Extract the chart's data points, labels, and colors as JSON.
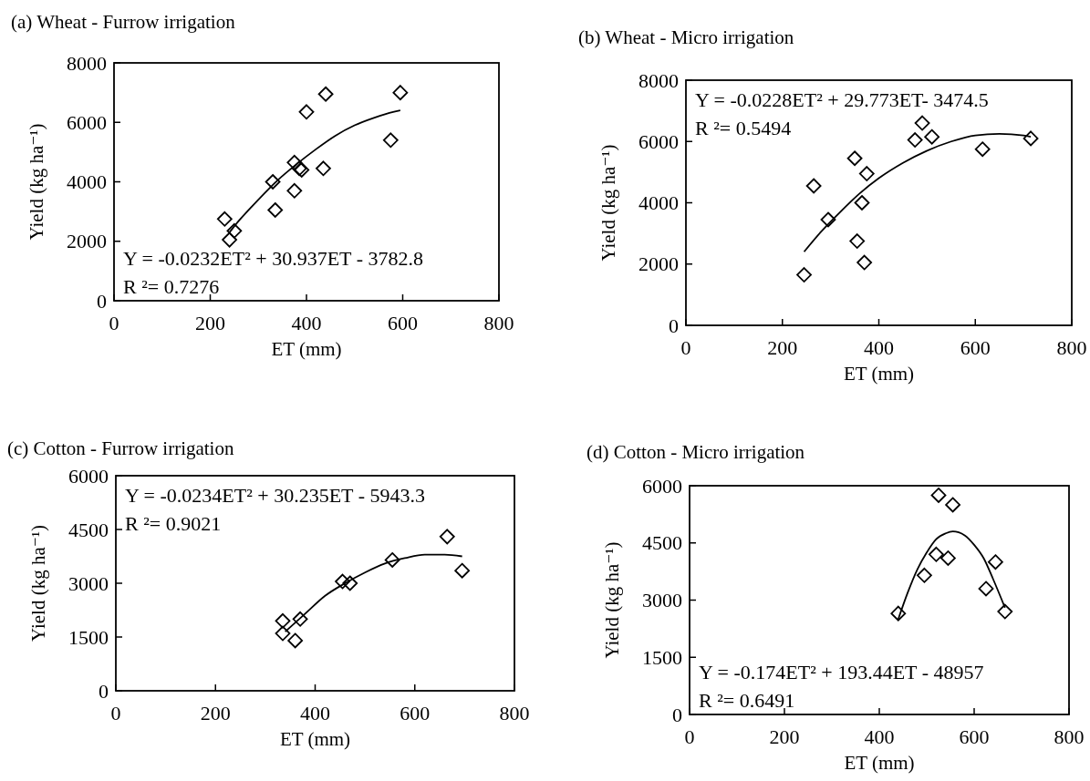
{
  "chart_data": [
    {
      "type": "scatter",
      "title": "(a) Wheat - Furrow irrigation",
      "xlabel": "ET (mm)",
      "ylabel": "Yield (kg ha⁻¹)",
      "xlim": [
        0,
        800
      ],
      "xticks": [
        0,
        200,
        400,
        600,
        800
      ],
      "ylim": [
        0,
        8000
      ],
      "yticks": [
        0,
        2000,
        4000,
        6000,
        8000
      ],
      "annotations": [
        "Y = -0.0232ET² + 30.937ET - 3782.8",
        "R ²= 0.7276"
      ],
      "series": [
        {
          "type": "scatter",
          "marker": "diamond",
          "color": "#000000",
          "x": [
            230,
            240,
            250,
            330,
            335,
            375,
            375,
            385,
            390,
            400,
            435,
            440,
            575,
            595
          ],
          "values": [
            2750,
            2050,
            2350,
            4000,
            3050,
            4650,
            3700,
            4450,
            4400,
            6350,
            4450,
            6950,
            5400,
            7000
          ]
        },
        {
          "type": "line",
          "marker": "none",
          "color": "#000000",
          "x": [
            240,
            260,
            300,
            340,
            380,
            420,
            460,
            500,
            540,
            580,
            595
          ],
          "values": [
            2300,
            2700,
            3400,
            4050,
            4600,
            5100,
            5550,
            5900,
            6150,
            6350,
            6400
          ]
        }
      ]
    },
    {
      "type": "scatter",
      "title": "(b) Wheat - Micro irrigation",
      "xlabel": "ET (mm)",
      "ylabel": "Yield (kg ha⁻¹)",
      "xlim": [
        0,
        800
      ],
      "xticks": [
        0,
        200,
        400,
        600,
        800
      ],
      "ylim": [
        0,
        8000
      ],
      "yticks": [
        0,
        2000,
        4000,
        6000,
        8000
      ],
      "annotations": [
        "Y = -0.0228ET² + 29.773ET- 3474.5",
        "R ²= 0.5494"
      ],
      "series": [
        {
          "type": "scatter",
          "marker": "diamond",
          "color": "#000000",
          "x": [
            245,
            265,
            295,
            350,
            355,
            365,
            370,
            375,
            475,
            490,
            510,
            615,
            715
          ],
          "values": [
            1650,
            4550,
            3450,
            5450,
            2750,
            4000,
            2050,
            4950,
            6050,
            6600,
            6150,
            5750,
            6100
          ]
        },
        {
          "type": "line",
          "marker": "none",
          "color": "#000000",
          "x": [
            245,
            280,
            320,
            360,
            400,
            450,
            500,
            550,
            600,
            650,
            700,
            715
          ],
          "values": [
            2400,
            3050,
            3700,
            4300,
            4800,
            5300,
            5700,
            6000,
            6200,
            6250,
            6200,
            6150
          ]
        }
      ]
    },
    {
      "type": "scatter",
      "title": "(c) Cotton - Furrow irrigation",
      "xlabel": "ET (mm)",
      "ylabel": "Yield (kg ha⁻¹)",
      "xlim": [
        0,
        800
      ],
      "xticks": [
        0,
        200,
        400,
        600,
        800
      ],
      "ylim": [
        0,
        6000
      ],
      "yticks": [
        0,
        1500,
        3000,
        4500,
        6000
      ],
      "annotations": [
        "Y = -0.0234ET² + 30.235ET - 5943.3",
        "R ²= 0.9021"
      ],
      "series": [
        {
          "type": "scatter",
          "marker": "diamond",
          "color": "#000000",
          "x": [
            335,
            335,
            360,
            370,
            455,
            470,
            555,
            665,
            695
          ],
          "values": [
            1950,
            1600,
            1400,
            2000,
            3050,
            3000,
            3650,
            4300,
            3350
          ]
        },
        {
          "type": "line",
          "marker": "none",
          "color": "#000000",
          "x": [
            340,
            380,
            420,
            460,
            500,
            540,
            580,
            620,
            660,
            695
          ],
          "values": [
            1650,
            2150,
            2650,
            3000,
            3300,
            3550,
            3700,
            3800,
            3800,
            3750
          ]
        }
      ]
    },
    {
      "type": "scatter",
      "title": "(d) Cotton - Micro irrigation",
      "xlabel": "ET (mm)",
      "ylabel": "Yield (kg ha⁻¹)",
      "xlim": [
        0,
        800
      ],
      "xticks": [
        0,
        200,
        400,
        600,
        800
      ],
      "ylim": [
        0,
        6000
      ],
      "yticks": [
        0,
        1500,
        3000,
        4500,
        6000
      ],
      "annotations": [
        "Y = -0.174ET² + 193.44ET - 48957",
        "R ²= 0.6491"
      ],
      "series": [
        {
          "type": "scatter",
          "marker": "diamond",
          "color": "#000000",
          "x": [
            440,
            495,
            520,
            525,
            545,
            555,
            625,
            645,
            665
          ],
          "values": [
            2650,
            3650,
            4200,
            5750,
            4100,
            5500,
            3300,
            4000,
            2700
          ]
        },
        {
          "type": "line",
          "marker": "none",
          "color": "#000000",
          "x": [
            440,
            460,
            480,
            500,
            520,
            540,
            555,
            580,
            600,
            620,
            640,
            665
          ],
          "values": [
            2500,
            3200,
            3800,
            4250,
            4600,
            4750,
            4800,
            4700,
            4450,
            4100,
            3550,
            2800
          ]
        }
      ]
    }
  ]
}
